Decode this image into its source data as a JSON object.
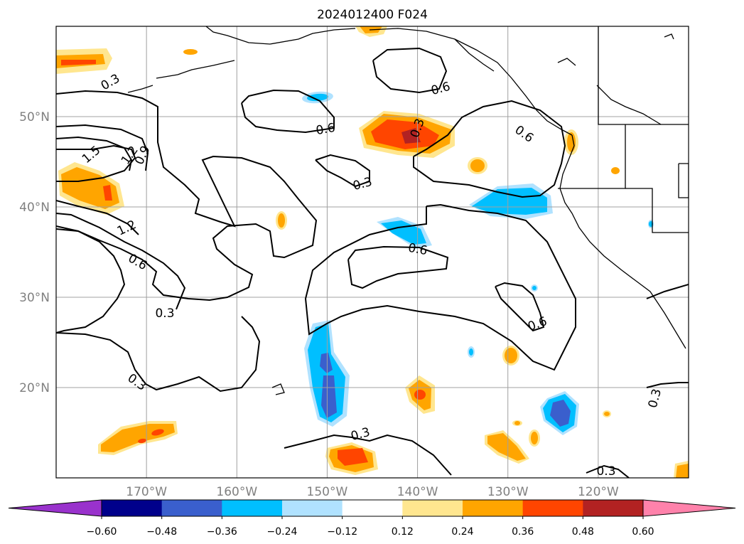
{
  "chart_data": {
    "type": "contour-map",
    "title": "2024012400 F024",
    "map": {
      "lon_range": [
        180,
        110
      ],
      "lat_range": [
        10,
        60
      ],
      "lon_ticks": [
        "170°W",
        "160°W",
        "150°W",
        "140°W",
        "130°W",
        "120°W"
      ],
      "lon_tick_values": [
        170,
        160,
        150,
        140,
        130,
        120
      ],
      "lat_ticks": [
        "50°N",
        "40°N",
        "30°N",
        "20°N"
      ],
      "lat_tick_values": [
        50,
        40,
        30,
        20
      ],
      "grid": true
    },
    "colorbar": {
      "orientation": "horizontal",
      "extend": "both",
      "levels": [
        -0.6,
        -0.48,
        -0.36,
        -0.24,
        -0.12,
        0.12,
        0.24,
        0.36,
        0.48,
        0.6
      ],
      "tick_labels": [
        "−0.60",
        "−0.48",
        "−0.36",
        "−0.24",
        "−0.12",
        "0.12",
        "0.24",
        "0.36",
        "0.48",
        "0.60"
      ],
      "colors": [
        "#9932cc",
        "#00008b",
        "#3a5fcd",
        "#00bfff",
        "#b0e2ff",
        "#ffffff",
        "#ffe68f",
        "#ffa500",
        "#ff4500",
        "#b22222",
        "#ff82ab"
      ]
    },
    "contour_labels": [
      "0.3",
      "0.3",
      "0.3",
      "0.3",
      "0.3",
      "0.3",
      "0.3",
      "0.3",
      "0.6",
      "0.6",
      "0.6",
      "0.6",
      "0.6",
      "0.6",
      "0.9",
      "1.2",
      "1.2",
      "1.5"
    ]
  }
}
